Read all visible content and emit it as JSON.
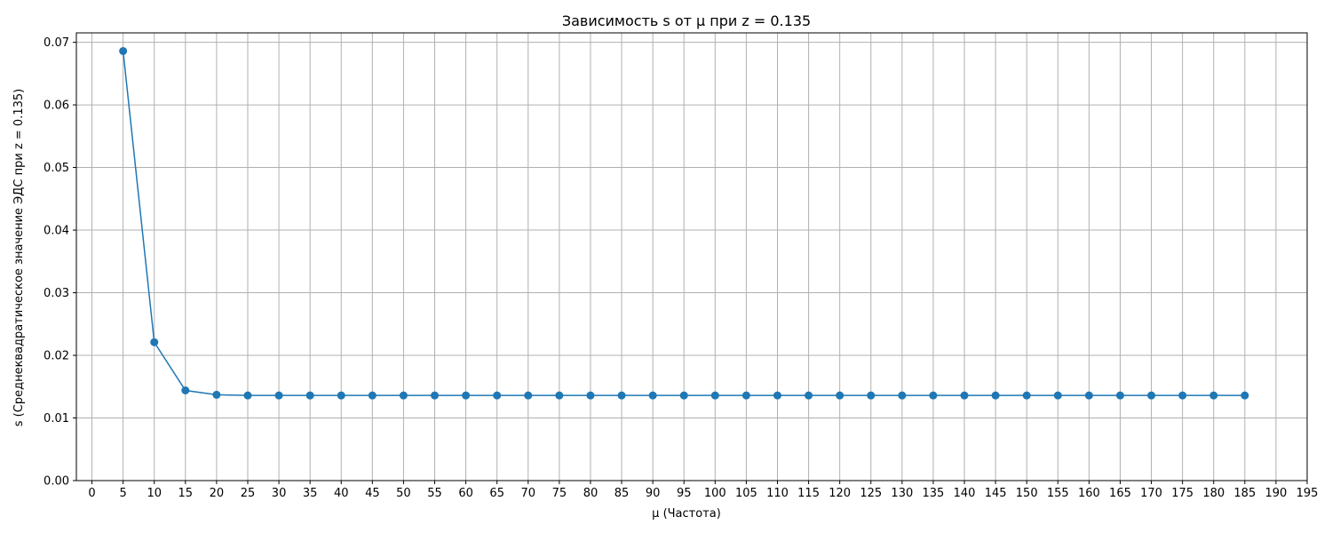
{
  "chart_data": {
    "type": "line",
    "title": "Зависимость s от μ при z = 0.135",
    "xlabel": "μ (Частота)",
    "ylabel": "s (Среднеквадратическое значение ЭДС при z = 0.135)",
    "xlim": [
      -2.5,
      195
    ],
    "ylim": [
      0.0,
      0.0715
    ],
    "xticks": [
      0,
      5,
      10,
      15,
      20,
      25,
      30,
      35,
      40,
      45,
      50,
      55,
      60,
      65,
      70,
      75,
      80,
      85,
      90,
      95,
      100,
      105,
      110,
      115,
      120,
      125,
      130,
      135,
      140,
      145,
      150,
      155,
      160,
      165,
      170,
      175,
      180,
      185,
      190,
      195
    ],
    "yticks": [
      0.0,
      0.01,
      0.02,
      0.03,
      0.04,
      0.05,
      0.06,
      0.07
    ],
    "ytick_labels": [
      "0.00",
      "0.01",
      "0.02",
      "0.03",
      "0.04",
      "0.05",
      "0.06",
      "0.07"
    ],
    "grid": true,
    "marker": "circle",
    "series": [
      {
        "color": "#1f77b4",
        "x": [
          5,
          10,
          15,
          20,
          25,
          30,
          35,
          40,
          45,
          50,
          55,
          60,
          65,
          70,
          75,
          80,
          85,
          90,
          95,
          100,
          105,
          110,
          115,
          120,
          125,
          130,
          135,
          140,
          145,
          150,
          155,
          160,
          165,
          170,
          175,
          180,
          185
        ],
        "y": [
          0.0686,
          0.0221,
          0.0144,
          0.0137,
          0.0136,
          0.0136,
          0.0136,
          0.0136,
          0.0136,
          0.0136,
          0.0136,
          0.0136,
          0.0136,
          0.0136,
          0.0136,
          0.0136,
          0.0136,
          0.0136,
          0.0136,
          0.0136,
          0.0136,
          0.0136,
          0.0136,
          0.0136,
          0.0136,
          0.0136,
          0.0136,
          0.0136,
          0.0136,
          0.0136,
          0.0136,
          0.0136,
          0.0136,
          0.0136,
          0.0136,
          0.0136,
          0.0136
        ]
      }
    ]
  }
}
